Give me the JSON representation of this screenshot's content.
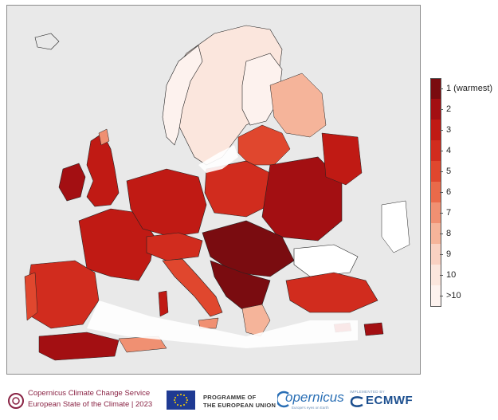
{
  "map": {
    "type": "choropleth",
    "subject": "Temperature rank",
    "land_color": "#e9e9e9",
    "sea_color": "#ffffff",
    "border_color": "#000000"
  },
  "legend": {
    "labels": [
      "1 (warmest)",
      "2",
      "3",
      "4",
      "5",
      "6",
      "7",
      "8",
      "9",
      "10",
      ">10"
    ],
    "colors": [
      "#7a0c10",
      "#a30f12",
      "#c01a14",
      "#d12c1e",
      "#e0472e",
      "#ea6a4a",
      "#f09072",
      "#f5b49a",
      "#f9d1c2",
      "#fbe6dd",
      "#fdf2ee"
    ]
  },
  "footer": {
    "c3s_line1": "Copernicus Climate Change Service",
    "c3s_line2": "European State of the Climate | 2023",
    "eu_line1": "PROGRAMME OF",
    "eu_line2": "THE EUROPEAN UNION",
    "copernicus_word": "opernicus",
    "copernicus_tag": "Europe's eyes on Earth",
    "ecmwf_sub": "IMPLEMENTED BY",
    "ecmwf_word": "ECMWF"
  }
}
